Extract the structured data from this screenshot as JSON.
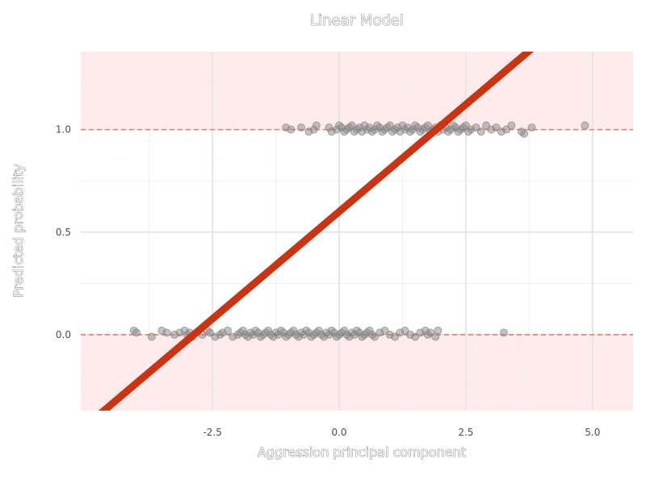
{
  "chart_data": {
    "type": "scatter",
    "title": "Linear Model",
    "xlabel": "Aggression principal component",
    "ylabel": "Predicted probability",
    "xlim": [
      -5.1,
      5.8
    ],
    "ylim": [
      -0.37,
      1.38
    ],
    "xticks": [
      -2.5,
      0.0,
      2.5,
      5.0
    ],
    "xtick_labels": [
      "-2.5",
      "0.0",
      "2.5",
      "5.0"
    ],
    "yticks": [
      0.0,
      0.5,
      1.0
    ],
    "ytick_labels": [
      "0.0",
      "0.5",
      "1.0"
    ],
    "grid": true,
    "shaded_regions": [
      {
        "y_from": 1.0,
        "y_to": 1.38,
        "color": "#ffebeb"
      },
      {
        "y_from": -0.37,
        "y_to": 0.0,
        "color": "#ffebeb"
      }
    ],
    "reference_lines": [
      {
        "y": 1.0,
        "style": "dashed",
        "color": "#e8806a"
      },
      {
        "y": 0.0,
        "style": "dashed",
        "color": "#e8806a"
      }
    ],
    "regression_line": {
      "intercept": 0.6,
      "slope": 0.209,
      "color": "#cc3311"
    },
    "series": [
      {
        "outcome": 1,
        "point_color": "#888888",
        "x": [
          -1.05,
          -0.95,
          -0.75,
          -0.6,
          -0.5,
          -0.45,
          -0.2,
          -0.15,
          -0.05,
          0.0,
          0.05,
          0.1,
          0.15,
          0.2,
          0.25,
          0.3,
          0.35,
          0.4,
          0.45,
          0.5,
          0.55,
          0.6,
          0.65,
          0.7,
          0.75,
          0.8,
          0.85,
          0.9,
          0.95,
          1.0,
          1.05,
          1.1,
          1.15,
          1.2,
          1.25,
          1.3,
          1.35,
          1.4,
          1.45,
          1.5,
          1.55,
          1.6,
          1.65,
          1.7,
          1.75,
          1.8,
          1.85,
          1.9,
          1.95,
          2.0,
          2.05,
          2.1,
          2.15,
          2.2,
          2.25,
          2.3,
          2.35,
          2.4,
          2.45,
          2.5,
          2.55,
          2.6,
          2.7,
          2.8,
          2.9,
          3.0,
          3.1,
          3.2,
          3.3,
          3.4,
          3.6,
          3.65,
          3.8,
          4.85
        ],
        "y": [
          1.01,
          1.0,
          1.01,
          0.99,
          1.0,
          1.02,
          1.01,
          0.99,
          1.0,
          1.02,
          1.01,
          0.99,
          1.0,
          1.01,
          1.02,
          0.99,
          1.0,
          1.01,
          0.99,
          1.02,
          1.0,
          1.01,
          0.99,
          1.0,
          1.02,
          1.01,
          0.99,
          1.0,
          1.01,
          1.02,
          0.99,
          1.0,
          1.01,
          0.99,
          1.02,
          1.0,
          1.01,
          0.99,
          1.0,
          1.02,
          1.01,
          0.99,
          1.0,
          1.01,
          1.02,
          0.99,
          1.0,
          1.01,
          0.99,
          1.02,
          1.0,
          1.01,
          0.99,
          1.0,
          1.02,
          1.01,
          0.99,
          1.0,
          1.01,
          1.02,
          0.99,
          1.0,
          1.01,
          0.99,
          1.02,
          1.0,
          1.01,
          0.99,
          1.0,
          1.02,
          0.99,
          0.98,
          1.01,
          1.02
        ]
      },
      {
        "outcome": 0,
        "point_color": "#888888",
        "x": [
          -4.05,
          -4.0,
          -3.7,
          -3.5,
          -3.4,
          -3.25,
          -3.15,
          -3.05,
          -3.0,
          -2.95,
          -2.9,
          -2.8,
          -2.7,
          -2.6,
          -2.55,
          -2.45,
          -2.35,
          -2.3,
          -2.2,
          -2.1,
          -2.0,
          -1.95,
          -1.9,
          -1.85,
          -1.8,
          -1.75,
          -1.7,
          -1.65,
          -1.6,
          -1.55,
          -1.5,
          -1.45,
          -1.4,
          -1.35,
          -1.3,
          -1.25,
          -1.2,
          -1.15,
          -1.1,
          -1.05,
          -1.0,
          -0.95,
          -0.9,
          -0.85,
          -0.8,
          -0.75,
          -0.7,
          -0.65,
          -0.6,
          -0.55,
          -0.5,
          -0.45,
          -0.4,
          -0.35,
          -0.3,
          -0.25,
          -0.2,
          -0.15,
          -0.1,
          -0.05,
          0.0,
          0.05,
          0.1,
          0.15,
          0.2,
          0.25,
          0.3,
          0.35,
          0.4,
          0.45,
          0.5,
          0.55,
          0.6,
          0.65,
          0.7,
          0.8,
          0.9,
          1.0,
          1.1,
          1.2,
          1.3,
          1.4,
          1.5,
          1.6,
          1.7,
          1.75,
          1.8,
          1.9,
          1.95,
          3.25
        ],
        "y": [
          0.02,
          0.01,
          -0.01,
          0.02,
          0.01,
          0.0,
          0.01,
          0.02,
          0.0,
          0.01,
          -0.01,
          0.01,
          0.0,
          0.02,
          0.01,
          -0.01,
          0.0,
          0.01,
          0.02,
          -0.01,
          0.0,
          0.01,
          0.02,
          0.0,
          -0.01,
          0.01,
          0.0,
          0.02,
          0.01,
          -0.01,
          0.0,
          0.01,
          0.02,
          0.0,
          -0.01,
          0.01,
          0.0,
          0.02,
          0.01,
          -0.01,
          0.0,
          0.01,
          0.02,
          0.0,
          -0.01,
          0.01,
          0.0,
          0.02,
          0.01,
          -0.01,
          0.0,
          0.01,
          0.02,
          0.0,
          -0.01,
          0.01,
          0.0,
          0.02,
          0.01,
          -0.01,
          0.0,
          0.01,
          0.02,
          0.0,
          -0.01,
          0.01,
          0.0,
          0.02,
          0.01,
          -0.01,
          0.0,
          0.01,
          0.02,
          0.0,
          -0.01,
          0.01,
          0.02,
          0.0,
          -0.01,
          0.01,
          0.02,
          0.0,
          -0.01,
          0.01,
          0.02,
          0.0,
          0.01,
          -0.01,
          0.02,
          0.01
        ]
      }
    ]
  }
}
